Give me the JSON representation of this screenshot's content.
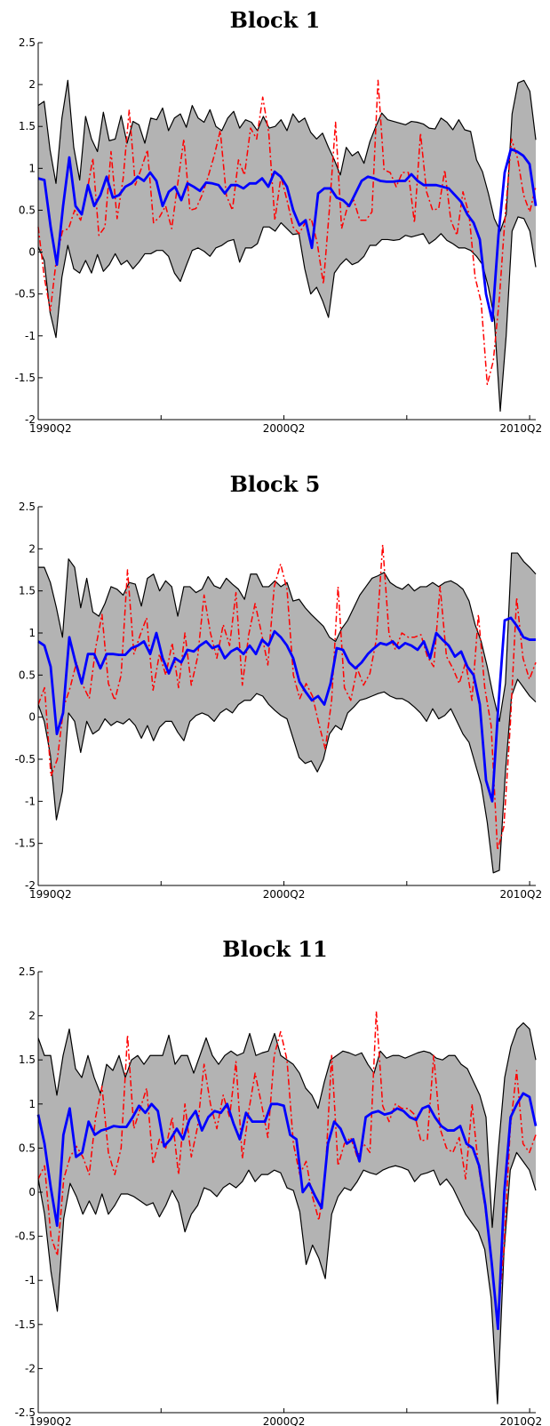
{
  "chart_data": [
    {
      "type": "line",
      "title": "Block 1",
      "ylim": [
        -2,
        2.5
      ],
      "yticks": [
        "-2",
        "-1.5",
        "-1",
        "-0.5",
        "0",
        "0.5",
        "1",
        "1.5",
        "2",
        "2.5"
      ],
      "xticks": [
        "1990Q2",
        "2000Q2",
        "2010Q2"
      ],
      "x_start": "1990Q2",
      "x_end": "2010Q3",
      "series": [
        {
          "role": "upper_band",
          "values": [
            1.75,
            1.8,
            1.22,
            0.82,
            1.6,
            2.05,
            1.25,
            0.86,
            1.62,
            1.35,
            1.2,
            1.67,
            1.33,
            1.35,
            1.63,
            1.3,
            1.56,
            1.52,
            1.3,
            1.6,
            1.58,
            1.72,
            1.45,
            1.6,
            1.65,
            1.49,
            1.75,
            1.6,
            1.55,
            1.7,
            1.5,
            1.45,
            1.6,
            1.68,
            1.48,
            1.58,
            1.55,
            1.45,
            1.62,
            1.48,
            1.5,
            1.58,
            1.45,
            1.65,
            1.55,
            1.6,
            1.43,
            1.35,
            1.42,
            1.25,
            1.1,
            0.92,
            1.25,
            1.15,
            1.2,
            1.06,
            1.32,
            1.5,
            1.66,
            1.58,
            1.56,
            1.54,
            1.52,
            1.56,
            1.55,
            1.53,
            1.48,
            1.47,
            1.6,
            1.55,
            1.46,
            1.58,
            1.46,
            1.44,
            1.1,
            0.96,
            0.7,
            0.4,
            0.25,
            0.45,
            1.65,
            2.02,
            2.05,
            1.92,
            1.34
          ]
        },
        {
          "role": "lower_band",
          "values": [
            0.06,
            -0.1,
            -0.72,
            -1.02,
            -0.3,
            0.08,
            -0.2,
            -0.25,
            -0.1,
            -0.25,
            -0.03,
            -0.23,
            -0.15,
            -0.02,
            -0.15,
            -0.1,
            -0.2,
            -0.12,
            -0.02,
            -0.02,
            0.02,
            0.02,
            -0.05,
            -0.25,
            -0.35,
            -0.16,
            0.02,
            0.05,
            0.01,
            -0.05,
            0.05,
            0.08,
            0.13,
            0.15,
            -0.12,
            0.05,
            0.05,
            0.1,
            0.3,
            0.3,
            0.25,
            0.35,
            0.28,
            0.21,
            0.22,
            -0.2,
            -0.5,
            -0.42,
            -0.58,
            -0.78,
            -0.25,
            -0.15,
            -0.08,
            -0.15,
            -0.12,
            -0.05,
            0.08,
            0.08,
            0.15,
            0.15,
            0.14,
            0.15,
            0.2,
            0.18,
            0.2,
            0.22,
            0.1,
            0.15,
            0.22,
            0.14,
            0.1,
            0.05,
            0.05,
            0.02,
            -0.05,
            -0.15,
            -0.42,
            -0.8,
            -1.9,
            -1.0,
            0.25,
            0.42,
            0.4,
            0.25,
            -0.18
          ]
        },
        {
          "role": "median",
          "values": [
            0.88,
            0.86,
            0.3,
            -0.15,
            0.55,
            1.13,
            0.55,
            0.45,
            0.8,
            0.55,
            0.68,
            0.9,
            0.65,
            0.68,
            0.78,
            0.82,
            0.9,
            0.85,
            0.95,
            0.85,
            0.55,
            0.72,
            0.78,
            0.62,
            0.82,
            0.78,
            0.73,
            0.83,
            0.82,
            0.8,
            0.7,
            0.8,
            0.8,
            0.76,
            0.82,
            0.82,
            0.88,
            0.78,
            0.96,
            0.9,
            0.78,
            0.5,
            0.32,
            0.38,
            0.05,
            0.7,
            0.76,
            0.76,
            0.65,
            0.62,
            0.55,
            0.7,
            0.85,
            0.9,
            0.88,
            0.85,
            0.84,
            0.84,
            0.85,
            0.85,
            0.93,
            0.85,
            0.8,
            0.8,
            0.8,
            0.78,
            0.76,
            0.68,
            0.6,
            0.45,
            0.35,
            0.15,
            -0.5,
            -0.82,
            0.2,
            0.95,
            1.23,
            1.2,
            1.15,
            1.05,
            0.55
          ]
        },
        {
          "role": "actual",
          "values": [
            0.3,
            -0.3,
            -0.7,
            -0.08,
            0.25,
            0.28,
            0.5,
            0.38,
            0.7,
            1.12,
            0.2,
            0.3,
            1.2,
            0.4,
            0.88,
            1.7,
            0.8,
            1.0,
            1.22,
            0.35,
            0.42,
            0.55,
            0.28,
            0.82,
            1.35,
            0.5,
            0.52,
            0.68,
            0.9,
            1.15,
            1.45,
            0.68,
            0.5,
            1.1,
            0.92,
            1.48,
            1.35,
            1.85,
            1.42,
            0.38,
            0.9,
            0.62,
            0.3,
            0.22,
            0.35,
            0.4,
            0.1,
            -0.38,
            0.52,
            1.55,
            0.28,
            0.55,
            0.62,
            0.38,
            0.38,
            0.48,
            2.05,
            0.98,
            0.95,
            0.78,
            0.95,
            0.95,
            0.35,
            1.42,
            0.72,
            0.5,
            0.52,
            0.98,
            0.38,
            0.2,
            0.72,
            0.45,
            -0.3,
            -0.6,
            -1.58,
            -1.3,
            -0.55,
            0.48,
            1.35,
            1.12,
            0.68,
            0.48,
            0.78
          ]
        }
      ]
    },
    {
      "type": "line",
      "title": "Block 5",
      "ylim": [
        -2,
        2.5
      ],
      "yticks": [
        "-2",
        "-1.5",
        "-1",
        "-0.5",
        "0",
        "0.5",
        "1",
        "1.5",
        "2",
        "2.5"
      ],
      "xticks": [
        "1990Q2",
        "2000Q2",
        "2010Q2"
      ],
      "x_start": "1990Q2",
      "x_end": "2010Q3",
      "series": [
        {
          "role": "upper_band",
          "values": [
            1.78,
            1.78,
            1.6,
            1.3,
            0.95,
            1.88,
            1.78,
            1.3,
            1.65,
            1.25,
            1.2,
            1.35,
            1.55,
            1.52,
            1.45,
            1.6,
            1.58,
            1.32,
            1.65,
            1.7,
            1.5,
            1.62,
            1.55,
            1.2,
            1.55,
            1.55,
            1.48,
            1.52,
            1.67,
            1.56,
            1.53,
            1.65,
            1.58,
            1.52,
            1.4,
            1.7,
            1.7,
            1.55,
            1.55,
            1.62,
            1.55,
            1.6,
            1.38,
            1.4,
            1.3,
            1.22,
            1.15,
            1.08,
            0.95,
            0.9,
            1.05,
            1.15,
            1.3,
            1.45,
            1.55,
            1.65,
            1.68,
            1.72,
            1.6,
            1.55,
            1.52,
            1.58,
            1.5,
            1.55,
            1.55,
            1.6,
            1.55,
            1.6,
            1.62,
            1.58,
            1.52,
            1.38,
            1.1,
            0.9,
            0.6,
            0.25,
            -0.05,
            0.4,
            1.95,
            1.95,
            1.85,
            1.78,
            1.7
          ]
        },
        {
          "role": "lower_band",
          "values": [
            0.15,
            -0.05,
            -0.45,
            -1.22,
            -0.88,
            0.05,
            -0.05,
            -0.42,
            -0.05,
            -0.2,
            -0.15,
            -0.02,
            -0.1,
            -0.05,
            -0.08,
            -0.02,
            -0.1,
            -0.25,
            -0.1,
            -0.28,
            -0.12,
            -0.05,
            -0.05,
            -0.18,
            -0.28,
            -0.05,
            0.02,
            0.05,
            0.02,
            -0.05,
            0.05,
            0.1,
            0.05,
            0.15,
            0.2,
            0.2,
            0.28,
            0.25,
            0.15,
            0.08,
            0.02,
            -0.02,
            -0.25,
            -0.48,
            -0.55,
            -0.52,
            -0.65,
            -0.5,
            -0.2,
            -0.1,
            -0.15,
            0.05,
            0.12,
            0.2,
            0.22,
            0.25,
            0.28,
            0.3,
            0.25,
            0.22,
            0.22,
            0.18,
            0.12,
            0.05,
            -0.05,
            0.1,
            -0.02,
            0.02,
            0.1,
            -0.05,
            -0.2,
            -0.3,
            -0.55,
            -0.8,
            -1.25,
            -1.85,
            -1.82,
            -0.65,
            0.25,
            0.45,
            0.35,
            0.25,
            0.18
          ]
        },
        {
          "role": "median",
          "values": [
            0.9,
            0.85,
            0.6,
            -0.2,
            0.05,
            0.95,
            0.65,
            0.4,
            0.75,
            0.75,
            0.58,
            0.75,
            0.75,
            0.74,
            0.74,
            0.82,
            0.85,
            0.9,
            0.75,
            1.0,
            0.7,
            0.52,
            0.7,
            0.65,
            0.8,
            0.78,
            0.85,
            0.9,
            0.82,
            0.85,
            0.7,
            0.78,
            0.82,
            0.75,
            0.85,
            0.75,
            0.92,
            0.85,
            1.02,
            0.95,
            0.85,
            0.7,
            0.42,
            0.3,
            0.2,
            0.25,
            0.15,
            0.4,
            0.82,
            0.8,
            0.65,
            0.58,
            0.65,
            0.75,
            0.82,
            0.88,
            0.86,
            0.9,
            0.82,
            0.88,
            0.85,
            0.8,
            0.9,
            0.7,
            1.0,
            0.92,
            0.85,
            0.72,
            0.78,
            0.6,
            0.5,
            0.15,
            -0.75,
            -1.0,
            0.15,
            1.15,
            1.18,
            1.08,
            0.95,
            0.92,
            0.92
          ]
        },
        {
          "role": "actual",
          "values": [
            0.15,
            0.35,
            -0.7,
            -0.5,
            0.12,
            0.35,
            0.65,
            0.38,
            0.22,
            0.82,
            1.22,
            0.4,
            0.2,
            0.5,
            1.75,
            0.75,
            0.98,
            1.18,
            0.32,
            0.75,
            0.5,
            0.88,
            0.35,
            1.0,
            0.38,
            0.72,
            1.45,
            1.0,
            0.7,
            1.1,
            0.85,
            1.48,
            0.38,
            0.98,
            1.35,
            1.0,
            0.62,
            1.55,
            1.82,
            1.52,
            0.5,
            0.22,
            0.4,
            0.25,
            -0.08,
            -0.38,
            0.2,
            1.55,
            0.35,
            0.2,
            0.58,
            0.38,
            0.52,
            0.92,
            2.05,
            0.98,
            0.8,
            1.0,
            0.95,
            0.95,
            0.98,
            0.72,
            0.6,
            1.55,
            0.72,
            0.58,
            0.4,
            0.65,
            0.2,
            1.22,
            0.35,
            -0.1,
            -1.58,
            -1.3,
            -0.1,
            1.42,
            0.7,
            0.45,
            0.65
          ]
        }
      ]
    },
    {
      "type": "line",
      "title": "Block 11",
      "ylim": [
        -2.5,
        2.5
      ],
      "yticks": [
        "-2.5",
        "-2",
        "-1.5",
        "-1",
        "-0.5",
        "0",
        "0.5",
        "1",
        "1.5",
        "2",
        "2.5"
      ],
      "xticks": [
        "1990Q2",
        "2000Q2",
        "2010Q2"
      ],
      "x_start": "1990Q2",
      "x_end": "2010Q3",
      "series": [
        {
          "role": "upper_band",
          "values": [
            1.75,
            1.55,
            1.55,
            1.1,
            1.55,
            1.85,
            1.4,
            1.3,
            1.55,
            1.3,
            1.12,
            1.45,
            1.38,
            1.55,
            1.3,
            1.5,
            1.55,
            1.45,
            1.55,
            1.55,
            1.55,
            1.78,
            1.45,
            1.55,
            1.55,
            1.35,
            1.55,
            1.75,
            1.55,
            1.45,
            1.55,
            1.6,
            1.55,
            1.58,
            1.8,
            1.55,
            1.58,
            1.6,
            1.8,
            1.55,
            1.5,
            1.45,
            1.35,
            1.18,
            1.1,
            0.95,
            1.25,
            1.5,
            1.55,
            1.6,
            1.58,
            1.55,
            1.58,
            1.45,
            1.35,
            1.6,
            1.52,
            1.55,
            1.55,
            1.52,
            1.55,
            1.58,
            1.6,
            1.58,
            1.52,
            1.5,
            1.55,
            1.55,
            1.45,
            1.4,
            1.25,
            1.1,
            0.85,
            -0.4,
            0.5,
            1.3,
            1.65,
            1.85,
            1.92,
            1.85,
            1.5
          ]
        },
        {
          "role": "lower_band",
          "values": [
            0.15,
            -0.25,
            -0.9,
            -1.35,
            -0.3,
            0.1,
            -0.05,
            -0.25,
            -0.1,
            -0.25,
            -0.02,
            -0.25,
            -0.15,
            -0.02,
            -0.02,
            -0.05,
            -0.1,
            -0.15,
            -0.12,
            -0.28,
            -0.15,
            0.02,
            -0.12,
            -0.45,
            -0.25,
            -0.15,
            0.05,
            0.02,
            -0.05,
            0.05,
            0.1,
            0.05,
            0.12,
            0.25,
            0.12,
            0.2,
            0.2,
            0.25,
            0.22,
            0.05,
            0.02,
            -0.22,
            -0.82,
            -0.6,
            -0.75,
            -0.98,
            -0.25,
            -0.05,
            0.05,
            0.02,
            0.12,
            0.25,
            0.22,
            0.2,
            0.25,
            0.28,
            0.3,
            0.28,
            0.25,
            0.12,
            0.2,
            0.22,
            0.25,
            0.08,
            0.15,
            0.05,
            -0.1,
            -0.25,
            -0.35,
            -0.45,
            -0.65,
            -1.2,
            -2.4,
            -0.7,
            0.25,
            0.45,
            0.35,
            0.25,
            0.02
          ]
        },
        {
          "role": "median",
          "values": [
            0.88,
            0.55,
            0.05,
            -0.38,
            0.65,
            0.95,
            0.4,
            0.45,
            0.8,
            0.65,
            0.7,
            0.72,
            0.75,
            0.74,
            0.74,
            0.85,
            0.98,
            0.9,
            1.0,
            0.92,
            0.52,
            0.6,
            0.72,
            0.6,
            0.82,
            0.92,
            0.7,
            0.85,
            0.92,
            0.9,
            1.0,
            0.78,
            0.6,
            0.9,
            0.8,
            0.8,
            0.8,
            1.0,
            1.0,
            0.98,
            0.65,
            0.6,
            0.0,
            0.1,
            -0.05,
            -0.18,
            0.55,
            0.8,
            0.72,
            0.55,
            0.6,
            0.35,
            0.85,
            0.9,
            0.92,
            0.88,
            0.9,
            0.95,
            0.92,
            0.85,
            0.82,
            0.95,
            0.98,
            0.85,
            0.75,
            0.7,
            0.7,
            0.75,
            0.55,
            0.5,
            0.3,
            -0.15,
            -0.8,
            -1.55,
            0.0,
            0.85,
            1.0,
            1.12,
            1.08,
            0.75
          ]
        },
        {
          "role": "actual",
          "values": [
            0.15,
            0.3,
            -0.5,
            -0.72,
            0.15,
            0.4,
            0.52,
            0.4,
            0.2,
            0.85,
            1.2,
            0.45,
            0.2,
            0.5,
            1.78,
            0.72,
            0.95,
            1.18,
            0.32,
            0.6,
            0.5,
            0.85,
            0.2,
            1.0,
            0.4,
            0.75,
            1.45,
            1.0,
            0.72,
            1.1,
            0.85,
            1.48,
            0.38,
            0.92,
            1.35,
            1.0,
            0.62,
            1.55,
            1.82,
            1.5,
            0.55,
            0.2,
            0.35,
            -0.05,
            -0.32,
            0.2,
            1.55,
            0.3,
            0.55,
            0.62,
            0.4,
            0.55,
            0.45,
            2.05,
            0.98,
            0.8,
            1.0,
            0.95,
            0.95,
            0.88,
            0.58,
            0.6,
            1.55,
            0.72,
            0.5,
            0.45,
            0.62,
            0.15,
            1.0,
            0.3,
            -0.15,
            -0.72,
            -1.5,
            -0.65,
            0.72,
            1.38,
            0.55,
            0.45,
            0.65
          ]
        }
      ]
    }
  ]
}
